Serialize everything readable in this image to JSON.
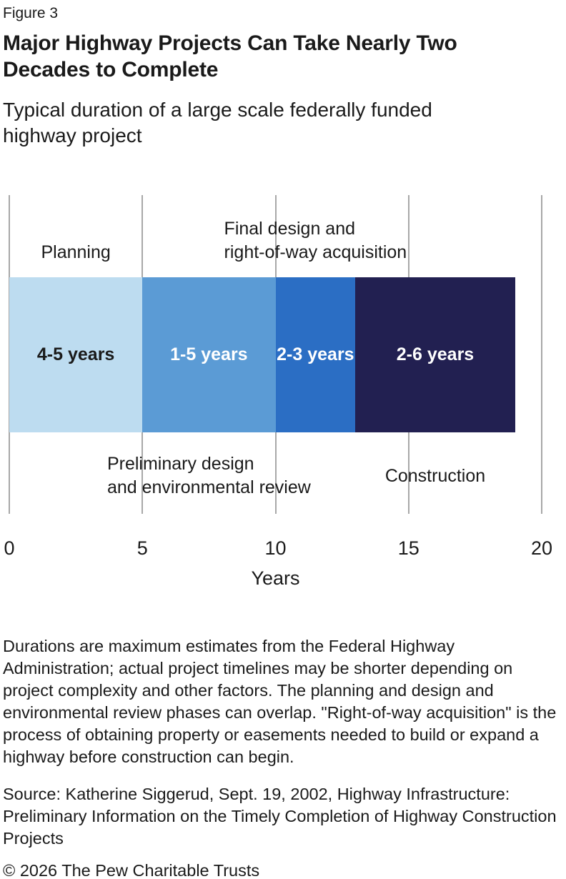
{
  "header": {
    "figure_label": "Figure 3",
    "title": "Major Highway Projects Can Take Nearly Two Decades to Complete",
    "subtitle": "Typical duration of a large scale federally funded highway project"
  },
  "chart_data": {
    "type": "bar",
    "variant": "horizontal-stacked-timeline",
    "title": "Typical duration of a large scale federally funded highway project",
    "xlabel": "Years",
    "xlim": [
      0,
      20
    ],
    "x_ticks": [
      0,
      5,
      10,
      15,
      20
    ],
    "grid": true,
    "gridline_color": "#a8a8a8",
    "segments": [
      {
        "name": "Planning",
        "label_lines": [
          "Planning"
        ],
        "label_position": "above",
        "start": 0,
        "end": 5,
        "duration_label": "4-5 years",
        "color": "#bddcf0",
        "text_color": "#1a1a1a"
      },
      {
        "name": "Preliminary design and environmental review",
        "label_lines": [
          "Preliminary design",
          "and environmental review"
        ],
        "label_position": "below",
        "start": 5,
        "end": 10,
        "duration_label": "1-5 years",
        "color": "#5b9bd5",
        "text_color": "#ffffff"
      },
      {
        "name": "Final design and right-of-way acquisition",
        "label_lines": [
          "Final design and",
          "right-of-way acquisition"
        ],
        "label_position": "above",
        "start": 10,
        "end": 13,
        "duration_label": "2-3 years",
        "color": "#2b6ec4",
        "text_color": "#ffffff"
      },
      {
        "name": "Construction",
        "label_lines": [
          "Construction"
        ],
        "label_position": "below",
        "start": 13,
        "end": 19,
        "duration_label": "2-6 years",
        "color": "#222051",
        "text_color": "#ffffff"
      }
    ]
  },
  "footer": {
    "notes": "Durations are maximum estimates from the Federal Highway Administration; actual project timelines may be shorter depending on project complexity and other factors. The planning and design and environmental review phases can overlap. \"Right-of-way acquisition\" is the process of obtaining property or easements needed to build or expand a highway before construction can begin.",
    "source": "Source: Katherine Siggerud, Sept. 19, 2002, Highway Infrastructure: Preliminary Information on the Timely Completion of Highway Construction Projects",
    "copyright": "© 2026 The Pew Charitable Trusts"
  }
}
